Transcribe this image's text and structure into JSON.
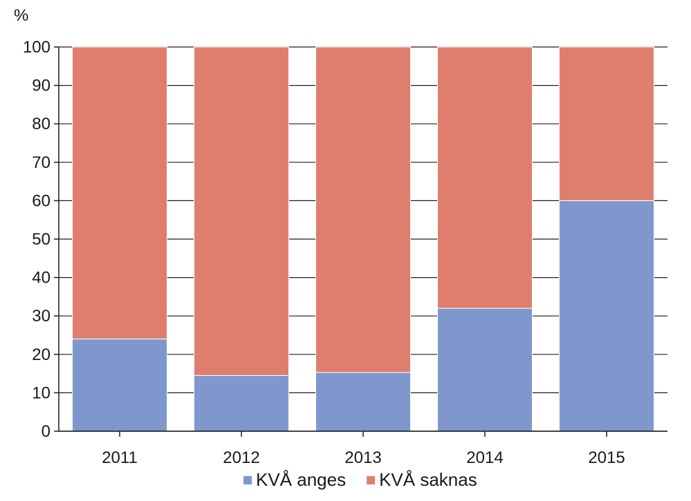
{
  "chart_data": {
    "type": "bar",
    "stacked": true,
    "y_unit": "%",
    "categories": [
      "2011",
      "2012",
      "2013",
      "2014",
      "2015"
    ],
    "series": [
      {
        "name": "KVÅ anges",
        "color": "#7f97cc",
        "values": [
          24,
          14.5,
          15.3,
          32,
          60
        ]
      },
      {
        "name": "KVÅ saknas",
        "color": "#df7e6e",
        "values": [
          76,
          85.5,
          84.7,
          68,
          40
        ]
      }
    ],
    "ylim": [
      0,
      100
    ],
    "yticks": [
      0,
      10,
      20,
      30,
      40,
      50,
      60,
      70,
      80,
      90,
      100
    ],
    "grid": true,
    "legend_position": "bottom-center"
  }
}
